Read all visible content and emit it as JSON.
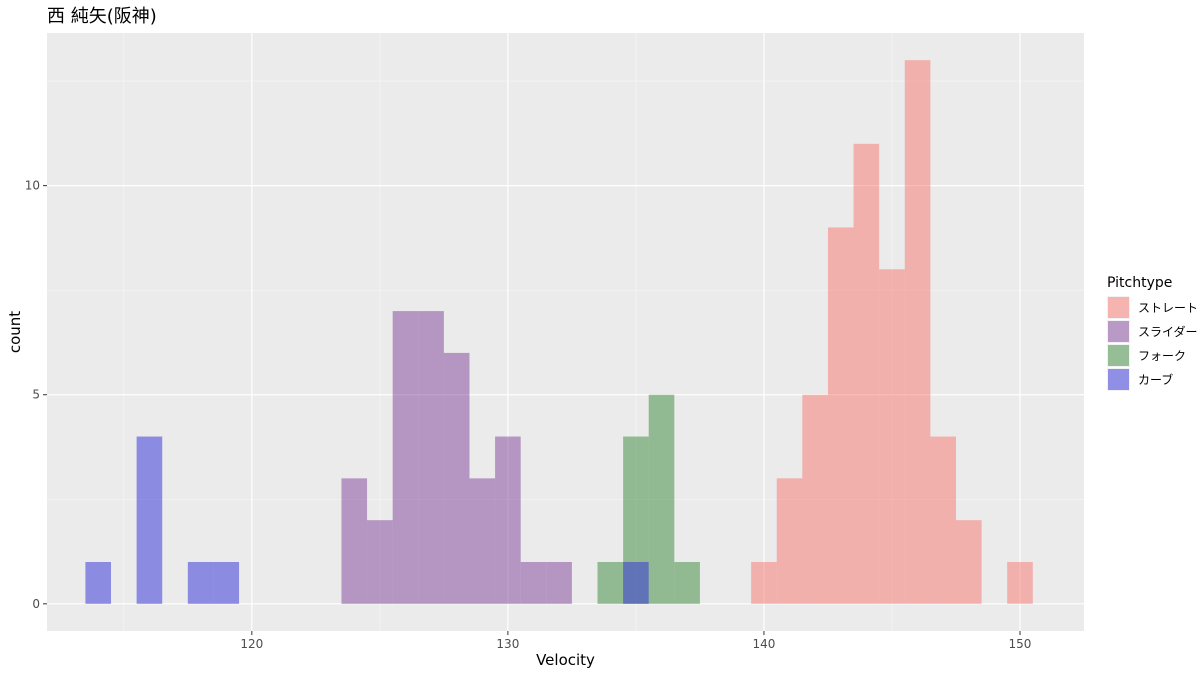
{
  "chart_data": {
    "type": "histogram",
    "title": "西 純矢(阪神)",
    "xlabel": "Velocity",
    "ylabel": "count",
    "xlim": [
      112,
      152.5
    ],
    "ylim": [
      -0.65,
      13.65
    ],
    "x_ticks": [
      120,
      130,
      140,
      150
    ],
    "y_ticks": [
      0,
      5,
      10
    ],
    "x_tick_labels": [
      "120",
      "130",
      "140",
      "150"
    ],
    "y_tick_labels": [
      "0",
      "5",
      "10"
    ],
    "bin_width": 1,
    "grid": true,
    "legend": {
      "title": "Pitchtype",
      "position": "right"
    },
    "series": [
      {
        "name": "ストレート",
        "color": "#f8766d",
        "bins": [
          {
            "x": 140,
            "count": 1
          },
          {
            "x": 141,
            "count": 3
          },
          {
            "x": 142,
            "count": 5
          },
          {
            "x": 143,
            "count": 9
          },
          {
            "x": 144,
            "count": 11
          },
          {
            "x": 145,
            "count": 8
          },
          {
            "x": 146,
            "count": 13
          },
          {
            "x": 147,
            "count": 4
          },
          {
            "x": 148,
            "count": 2
          },
          {
            "x": 150,
            "count": 1
          }
        ]
      },
      {
        "name": "スライダー",
        "color": "#7f3f98",
        "bins": [
          {
            "x": 124,
            "count": 3
          },
          {
            "x": 125,
            "count": 2
          },
          {
            "x": 126,
            "count": 7
          },
          {
            "x": 127,
            "count": 7
          },
          {
            "x": 128,
            "count": 6
          },
          {
            "x": 129,
            "count": 3
          },
          {
            "x": 130,
            "count": 4
          },
          {
            "x": 131,
            "count": 1
          },
          {
            "x": 132,
            "count": 1
          }
        ]
      },
      {
        "name": "フォーク",
        "color": "#3a8a3a",
        "bins": [
          {
            "x": 134,
            "count": 1
          },
          {
            "x": 135,
            "count": 4
          },
          {
            "x": 136,
            "count": 5
          },
          {
            "x": 137,
            "count": 1
          }
        ]
      },
      {
        "name": "カーブ",
        "color": "#2b2bd9",
        "bins": [
          {
            "x": 114,
            "count": 1
          },
          {
            "x": 116,
            "count": 4
          },
          {
            "x": 118,
            "count": 1
          },
          {
            "x": 119,
            "count": 1
          },
          {
            "x": 135,
            "count": 1
          }
        ]
      }
    ]
  }
}
